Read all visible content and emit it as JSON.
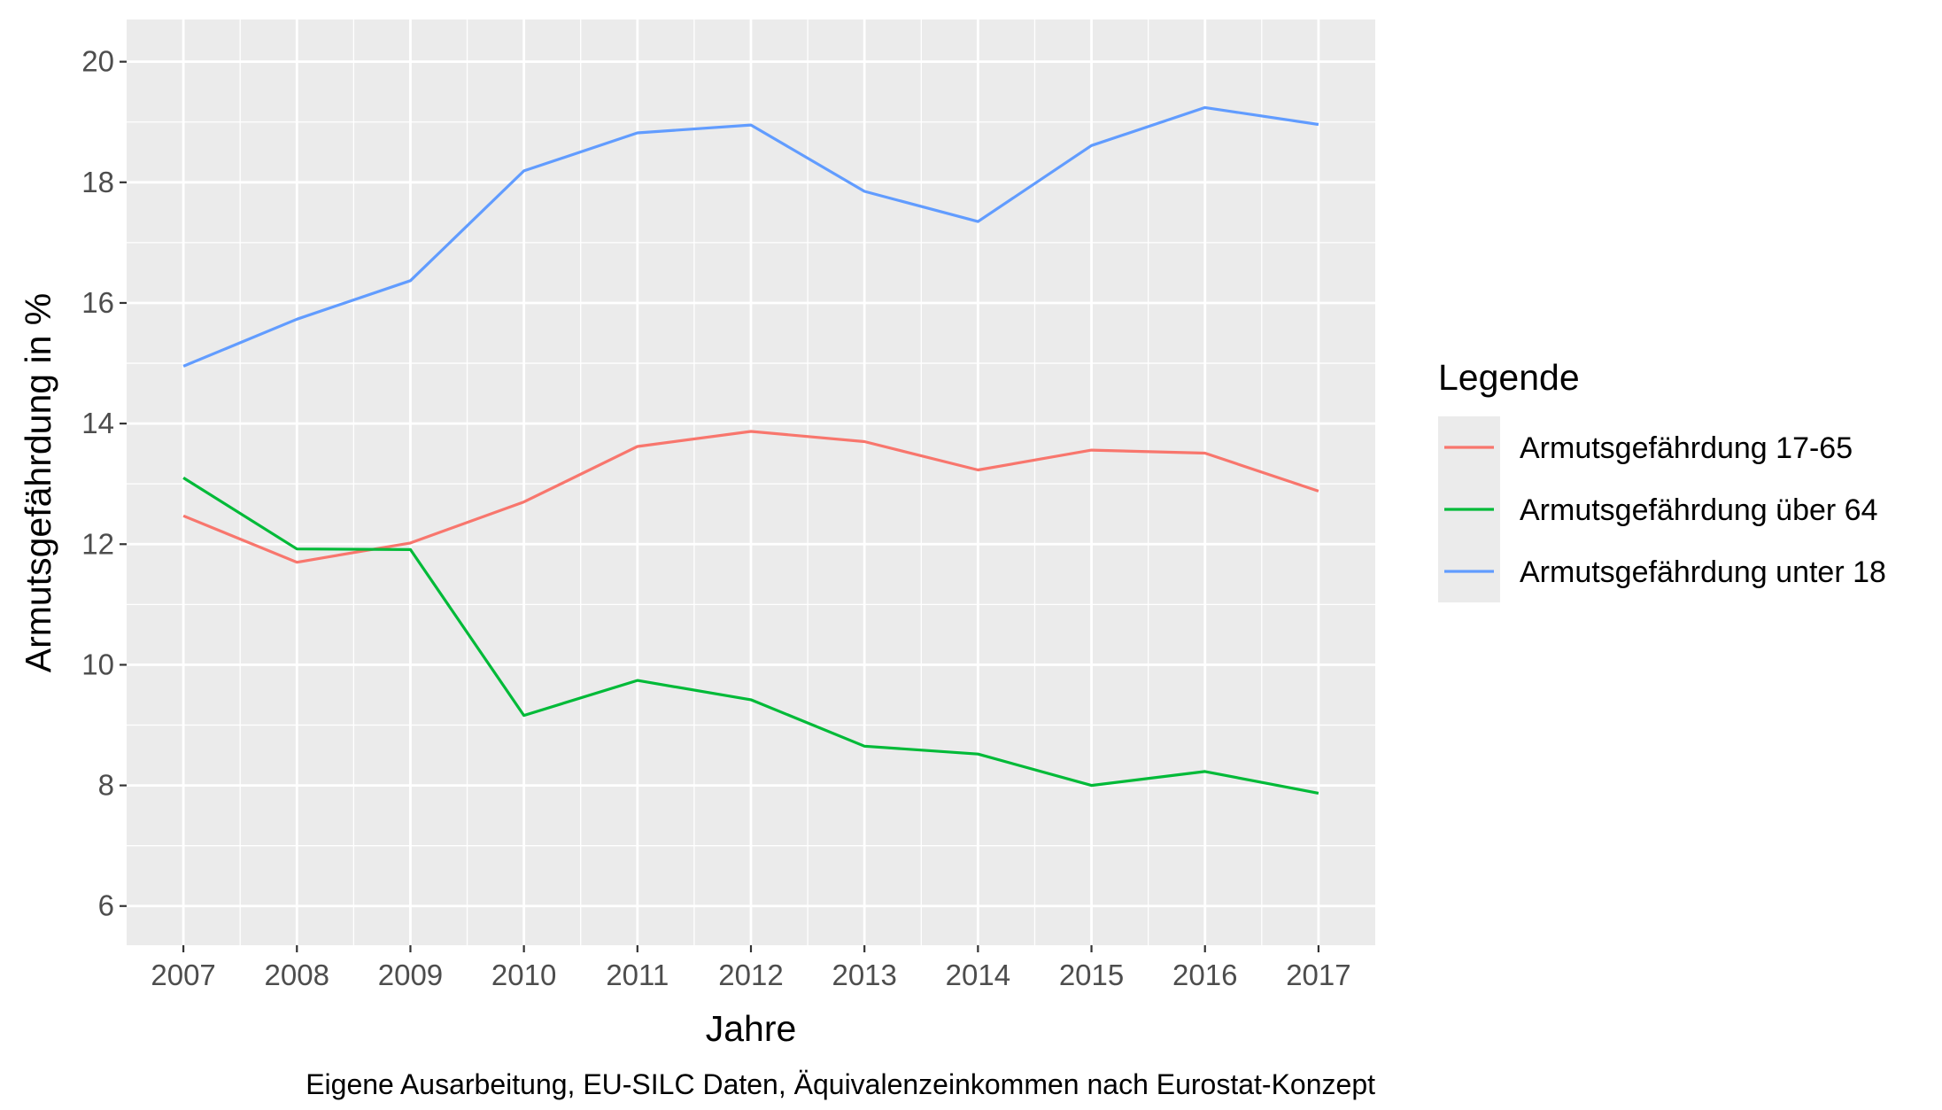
{
  "chart_data": {
    "type": "line",
    "x": [
      2007,
      2008,
      2009,
      2010,
      2011,
      2012,
      2013,
      2014,
      2015,
      2016,
      2017
    ],
    "series": [
      {
        "name": "Armutsgefährdung 17-65",
        "color": "#F8766D",
        "values": [
          12.47,
          11.7,
          12.02,
          12.7,
          13.62,
          13.87,
          13.7,
          13.23,
          13.56,
          13.51,
          12.88
        ]
      },
      {
        "name": "Armutsgefährdung über 64",
        "color": "#00BA38",
        "values": [
          13.1,
          11.92,
          11.91,
          9.16,
          9.74,
          9.42,
          8.65,
          8.52,
          8.0,
          8.23,
          7.87
        ]
      },
      {
        "name": "Armutsgefährdung unter 18",
        "color": "#619CFF",
        "values": [
          14.95,
          15.73,
          16.37,
          18.19,
          18.82,
          18.95,
          17.85,
          17.35,
          18.61,
          19.24,
          18.96
        ]
      }
    ],
    "xlabel": "Jahre",
    "ylabel": "Armutsgefährdung in %",
    "legend_title": "Legende",
    "caption": "Eigene Ausarbeitung, EU-SILC Daten, Äquivalenzeinkommen nach Eurostat-Konzept",
    "xlim": [
      2006.5,
      2017.5
    ],
    "ylim": [
      5.35,
      20.7
    ],
    "y_ticks": [
      6,
      8,
      10,
      12,
      14,
      16,
      18,
      20
    ],
    "x_ticks": [
      2007,
      2008,
      2009,
      2010,
      2011,
      2012,
      2013,
      2014,
      2015,
      2016,
      2017
    ],
    "grid": true,
    "legend_position": "right",
    "panel_background": "#EBEBEB",
    "grid_color": "#FFFFFF"
  }
}
